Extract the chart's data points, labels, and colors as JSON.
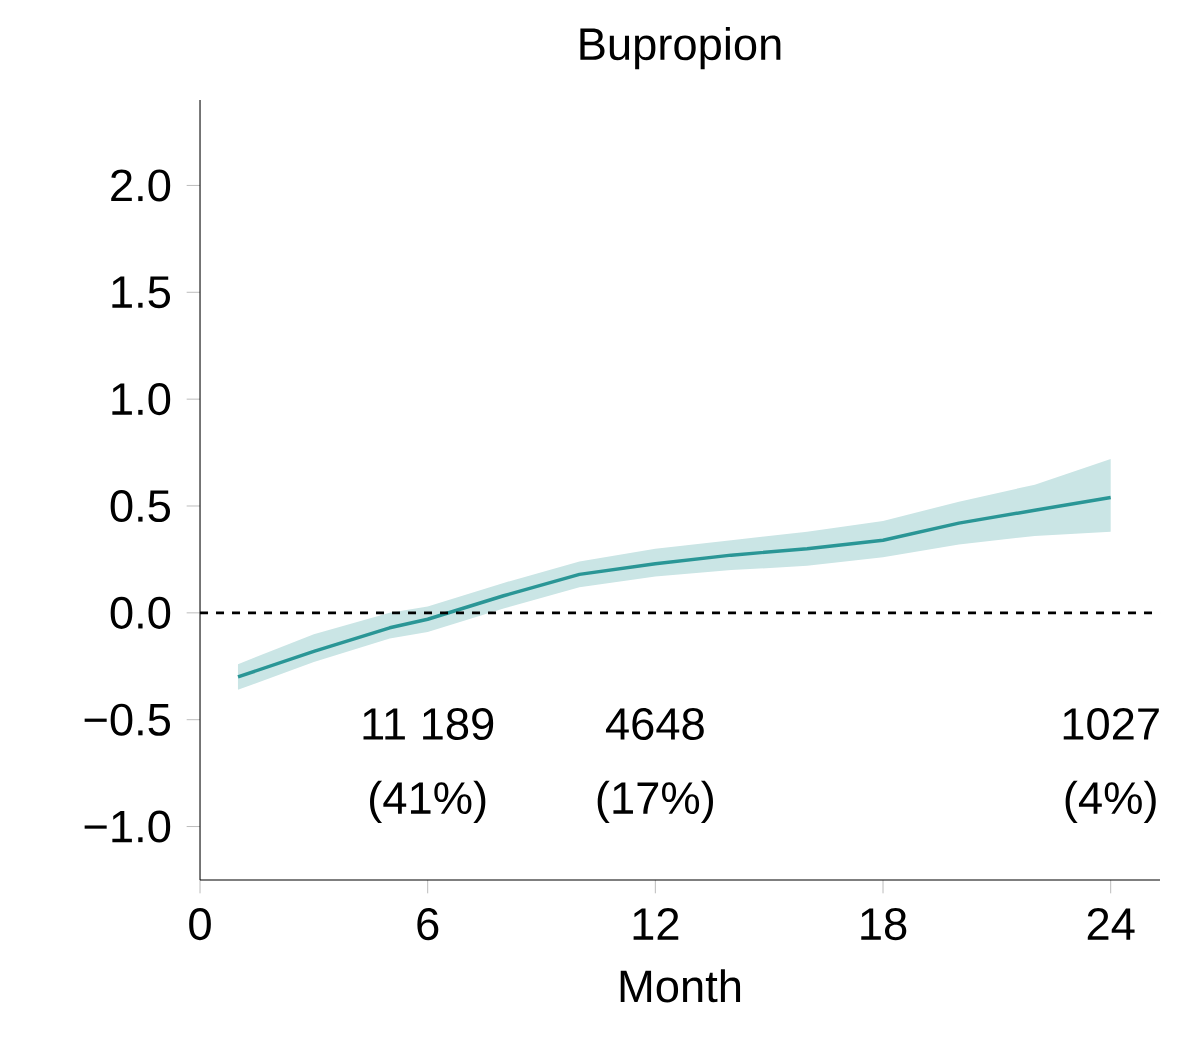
{
  "chart_data": {
    "type": "line",
    "title": "Bupropion",
    "xlabel": "Month",
    "xlim": [
      0,
      25.3
    ],
    "ylim": [
      -1.25,
      2.4
    ],
    "xticks": [
      0,
      6,
      12,
      18,
      24
    ],
    "yticks": [
      {
        "value": -1,
        "label": "−1.0"
      },
      {
        "value": -0.5,
        "label": "−0.5"
      },
      {
        "value": 0,
        "label": "0.0"
      },
      {
        "value": 0.5,
        "label": "0.5"
      },
      {
        "value": 1,
        "label": "1.0"
      },
      {
        "value": 1.5,
        "label": "1.5"
      },
      {
        "value": 2,
        "label": "2.0"
      }
    ],
    "series": [
      {
        "color": "#2a9696",
        "x": [
          1,
          3,
          5,
          6,
          8,
          10,
          12,
          14,
          16,
          18,
          20,
          22,
          24
        ],
        "values": [
          -0.3,
          -0.18,
          -0.07,
          -0.03,
          0.08,
          0.18,
          0.23,
          0.27,
          0.3,
          0.34,
          0.42,
          0.48,
          0.54
        ],
        "lower": [
          -0.36,
          -0.23,
          -0.12,
          -0.09,
          0.02,
          0.12,
          0.17,
          0.2,
          0.22,
          0.26,
          0.32,
          0.36,
          0.38
        ],
        "upper": [
          -0.24,
          -0.1,
          0.0,
          0.03,
          0.14,
          0.24,
          0.3,
          0.34,
          0.38,
          0.43,
          0.52,
          0.6,
          0.72
        ]
      }
    ],
    "ref_lines": [
      {
        "axis": "y",
        "value": 0,
        "color": "#000000",
        "line_style": "dashed"
      }
    ],
    "annotations": [
      "11 189",
      "(41%)",
      "4648",
      "(17%)",
      "1027",
      "(4%)"
    ]
  }
}
